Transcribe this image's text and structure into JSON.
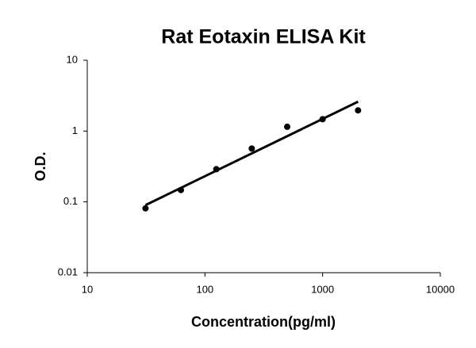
{
  "chart_data": {
    "type": "scatter",
    "title": "Rat Eotaxin ELISA Kit",
    "x_label": "Concentration(pg/ml)",
    "y_label": "O.D.",
    "x": [
      31.25,
      62.5,
      125,
      250,
      500,
      1000,
      2000
    ],
    "values": [
      0.081,
      0.147,
      0.29,
      0.566,
      1.15,
      1.47,
      1.96
    ],
    "color": "#000000",
    "trendline": {
      "x": [
        31.25,
        2000
      ],
      "values": [
        0.09,
        2.6
      ]
    },
    "xlim": [
      10,
      10000
    ],
    "xticks": [
      10,
      100,
      1000,
      10000
    ],
    "ylim": [
      0.01,
      10
    ],
    "yticks": [
      0.01,
      0.1,
      1,
      10
    ],
    "xscale": "log",
    "yscale": "log",
    "grid": false
  }
}
